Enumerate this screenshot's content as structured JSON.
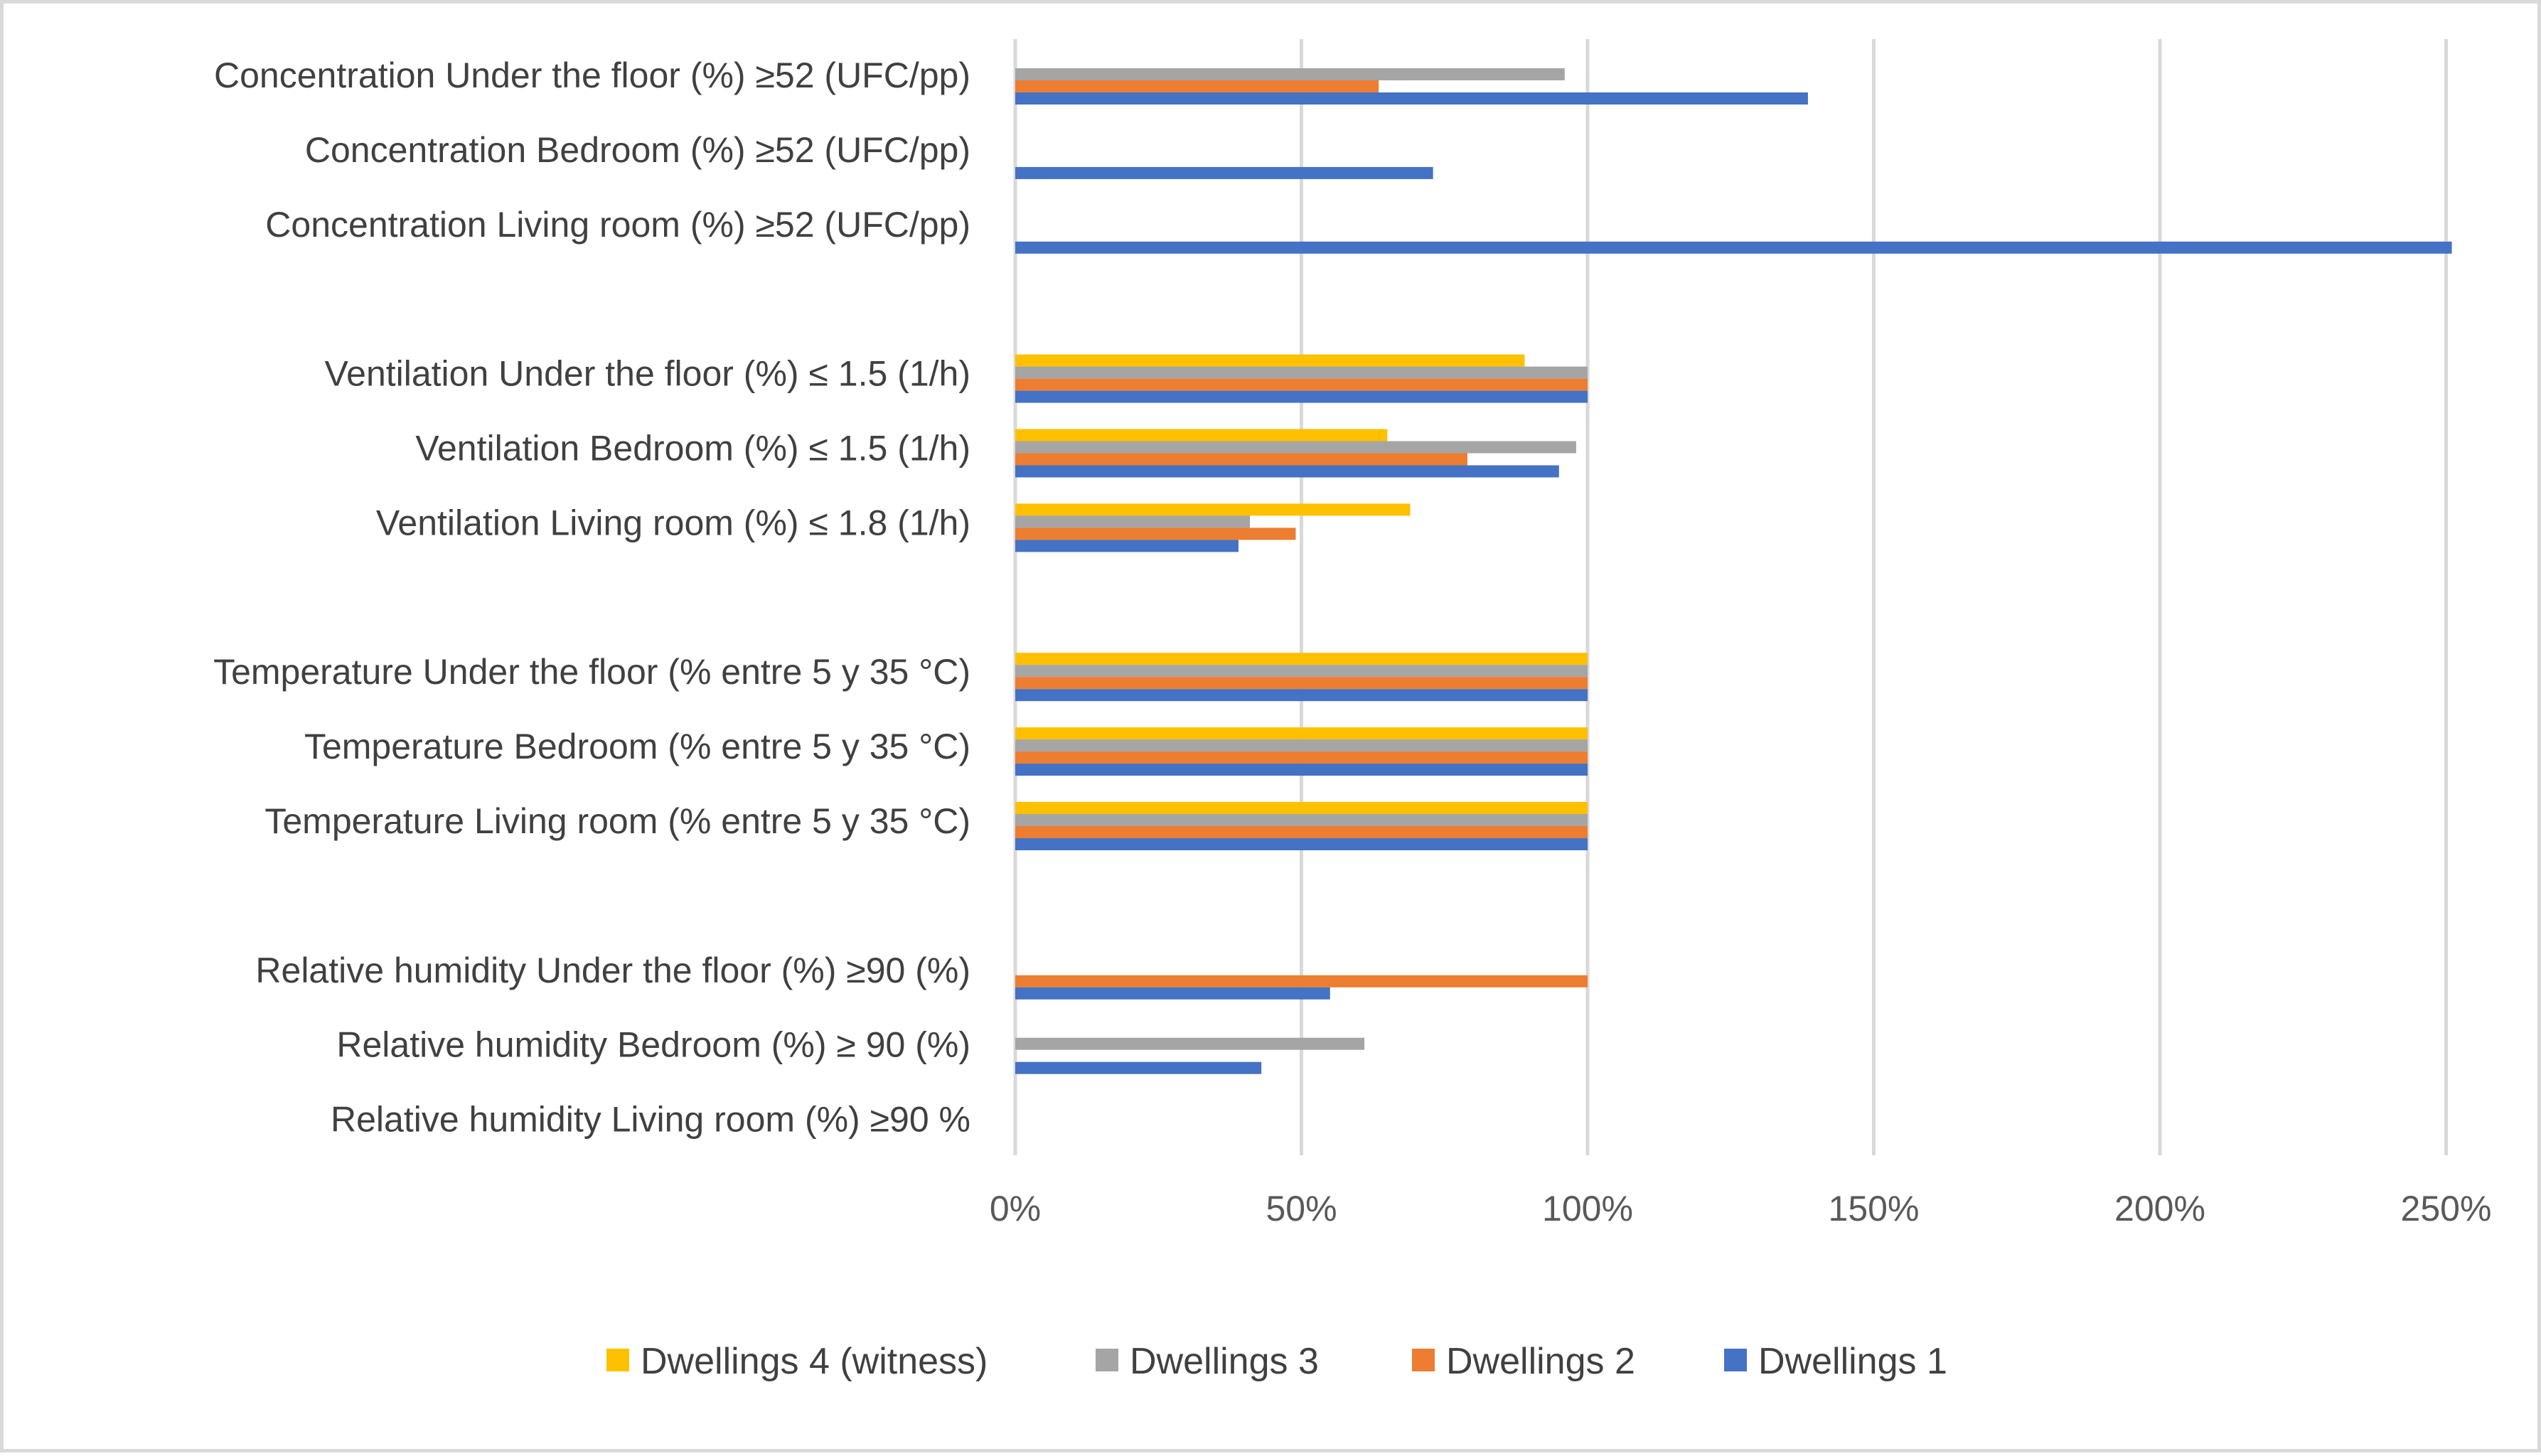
{
  "chart_data": {
    "type": "bar",
    "orientation": "horizontal",
    "title": "",
    "xlabel": "",
    "ylabel": "",
    "xlim": [
      0,
      2.5
    ],
    "grid": true,
    "legend_position": "bottom",
    "x_ticks": [
      {
        "value": 0,
        "label": "0%"
      },
      {
        "value": 0.5,
        "label": "50%"
      },
      {
        "value": 1.0,
        "label": "100%"
      },
      {
        "value": 1.5,
        "label": "150%"
      },
      {
        "value": 2.0,
        "label": "200%"
      },
      {
        "value": 2.5,
        "label": "250%"
      }
    ],
    "categories": [
      "Concentration Under the floor (%) ≥52 (UFC/pp)",
      "Concentration Bedroom (%) ≥52 (UFC/pp)",
      "Concentration Living room (%) ≥52 (UFC/pp)",
      "",
      "Ventilation Under the floor (%) ≤ 1.5 (1/h)",
      "Ventilation Bedroom (%) ≤ 1.5 (1/h)",
      "Ventilation Living room (%) ≤ 1.8 (1/h)",
      "",
      "Temperature Under the floor (% entre 5 y 35 °C)",
      "Temperature Bedroom (% entre 5 y 35 °C)",
      "Temperature Living room (% entre 5 y 35 °C)",
      "",
      "Relative humidity Under the floor (%) ≥90 (%)",
      "Relative humidity Bedroom (%) ≥ 90 (%)",
      "Relative humidity Living room (%) ≥90 %"
    ],
    "series": [
      {
        "name": "Dwellings  4 (witness)",
        "color": "#ffc000",
        "values": [
          0,
          0,
          0,
          null,
          0.89,
          0.65,
          0.69,
          null,
          1.0,
          1.0,
          1.0,
          null,
          0,
          0,
          0
        ]
      },
      {
        "name": "Dwellings  3",
        "color": "#a5a5a5",
        "values": [
          0.96,
          0,
          0,
          null,
          1.0,
          0.98,
          0.41,
          null,
          1.0,
          1.0,
          1.0,
          null,
          0,
          0.61,
          0
        ]
      },
      {
        "name": "Dwellings  2",
        "color": "#ed7d31",
        "values": [
          0.635,
          0,
          0,
          null,
          1.0,
          0.79,
          0.49,
          null,
          1.0,
          1.0,
          1.0,
          null,
          1.0,
          0,
          0
        ]
      },
      {
        "name": "Dwellings 1",
        "color": "#4472c4",
        "values": [
          1.385,
          0.73,
          2.51,
          null,
          1.0,
          0.95,
          0.39,
          null,
          1.0,
          1.0,
          1.0,
          null,
          0.55,
          0.43,
          0
        ]
      }
    ]
  }
}
